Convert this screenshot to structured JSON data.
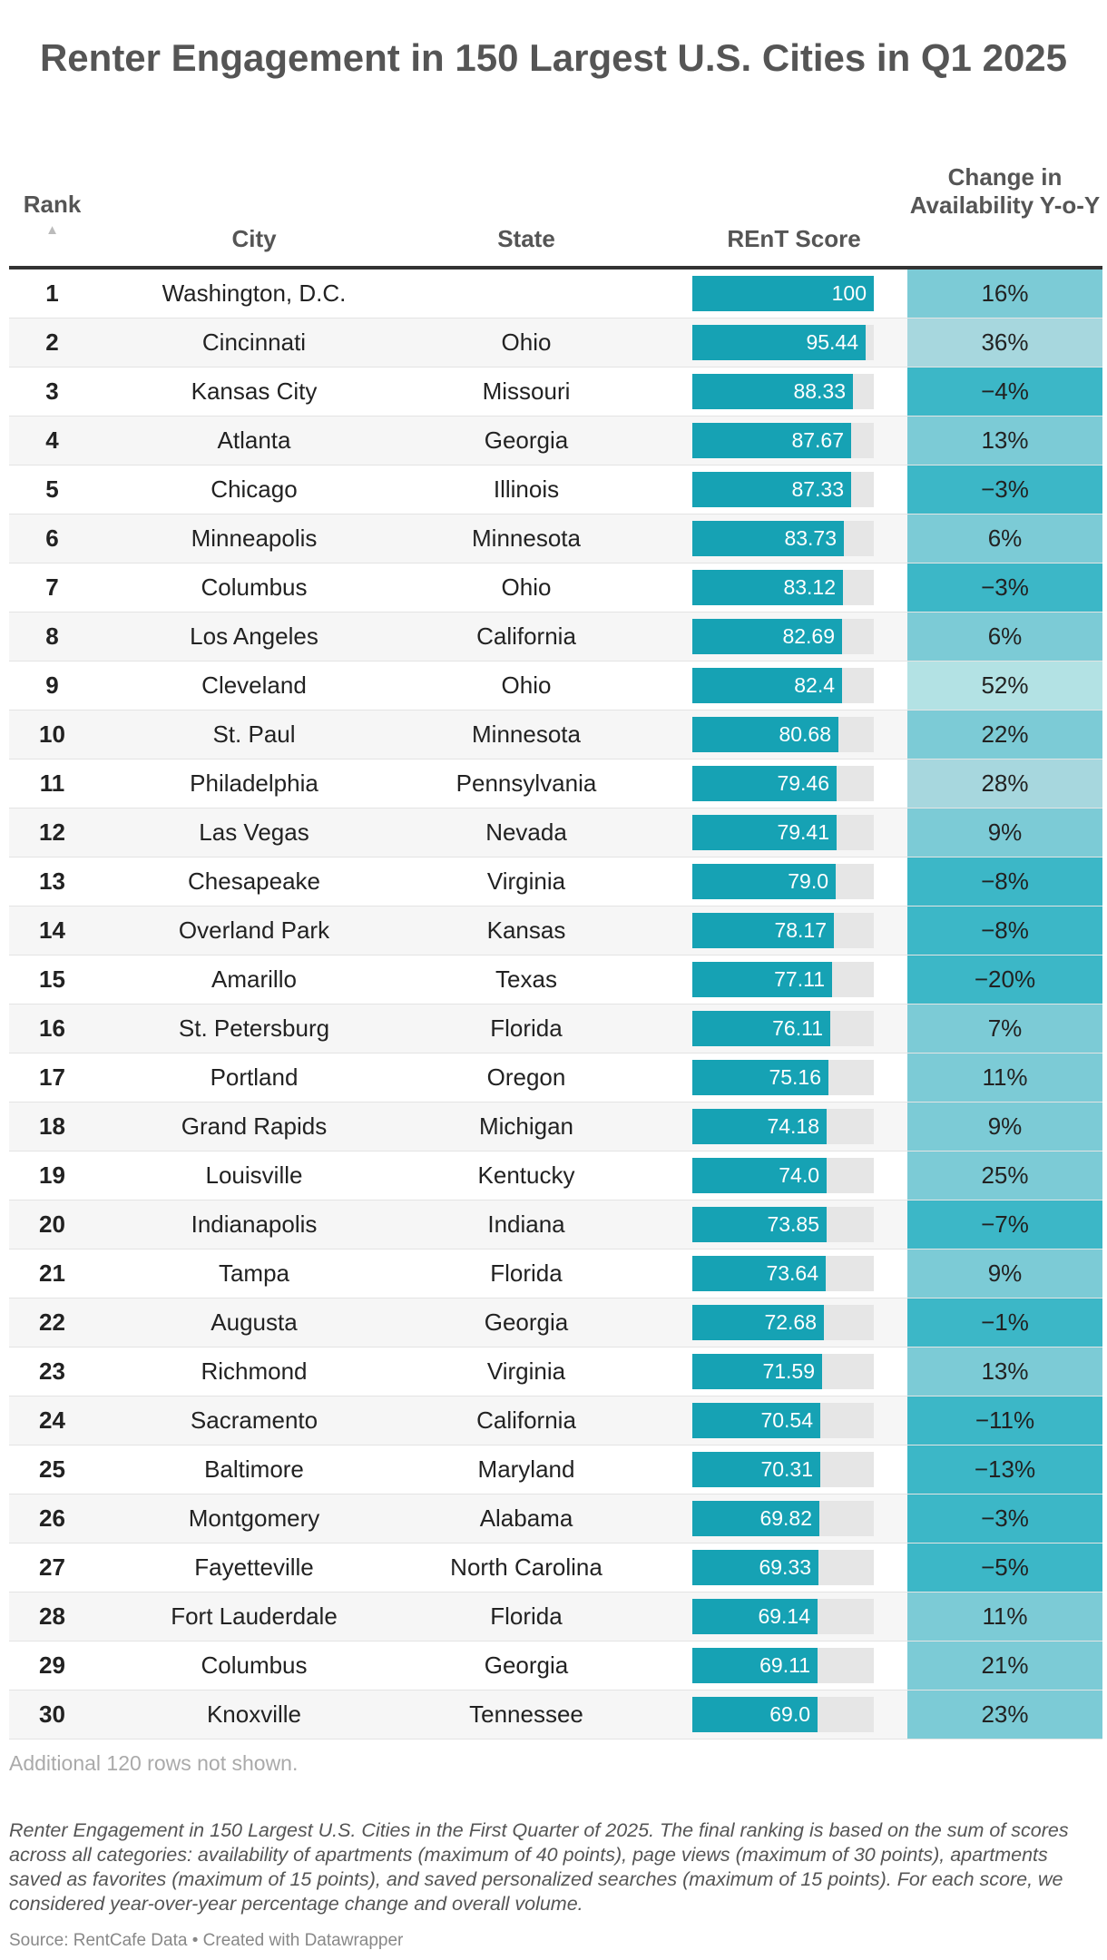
{
  "title": "Renter Engagement in 150 Largest U.S. Cities in Q1 2025",
  "columns": {
    "rank": "Rank",
    "city": "City",
    "state": "State",
    "score": "REnT Score",
    "change": "Change in Availability Y-o-Y"
  },
  "sort_icon": "sort-ascending-icon",
  "colors": {
    "bar": "#16a2b4",
    "bar_track": "#e6e6e6",
    "change_scale": [
      "#3cb7c7",
      "#7ccbd6",
      "#a7d7de",
      "#b3e2e4"
    ]
  },
  "chart_data": {
    "type": "table",
    "score_max": 100,
    "rows": [
      {
        "rank": "1",
        "city": "Washington, D.C.",
        "state": "",
        "score": 100,
        "score_label": "100",
        "change": 16,
        "change_label": "16%"
      },
      {
        "rank": "2",
        "city": "Cincinnati",
        "state": "Ohio",
        "score": 95.44,
        "score_label": "95.44",
        "change": 36,
        "change_label": "36%"
      },
      {
        "rank": "3",
        "city": "Kansas City",
        "state": "Missouri",
        "score": 88.33,
        "score_label": "88.33",
        "change": -4,
        "change_label": "−4%"
      },
      {
        "rank": "4",
        "city": "Atlanta",
        "state": "Georgia",
        "score": 87.67,
        "score_label": "87.67",
        "change": 13,
        "change_label": "13%"
      },
      {
        "rank": "5",
        "city": "Chicago",
        "state": "Illinois",
        "score": 87.33,
        "score_label": "87.33",
        "change": -3,
        "change_label": "−3%"
      },
      {
        "rank": "6",
        "city": "Minneapolis",
        "state": "Minnesota",
        "score": 83.73,
        "score_label": "83.73",
        "change": 6,
        "change_label": "6%"
      },
      {
        "rank": "7",
        "city": "Columbus",
        "state": "Ohio",
        "score": 83.12,
        "score_label": "83.12",
        "change": -3,
        "change_label": "−3%"
      },
      {
        "rank": "8",
        "city": "Los Angeles",
        "state": "California",
        "score": 82.69,
        "score_label": "82.69",
        "change": 6,
        "change_label": "6%"
      },
      {
        "rank": "9",
        "city": "Cleveland",
        "state": "Ohio",
        "score": 82.4,
        "score_label": "82.4",
        "change": 52,
        "change_label": "52%"
      },
      {
        "rank": "10",
        "city": "St. Paul",
        "state": "Minnesota",
        "score": 80.68,
        "score_label": "80.68",
        "change": 22,
        "change_label": "22%"
      },
      {
        "rank": "11",
        "city": "Philadelphia",
        "state": "Pennsylvania",
        "score": 79.46,
        "score_label": "79.46",
        "change": 28,
        "change_label": "28%"
      },
      {
        "rank": "12",
        "city": "Las Vegas",
        "state": "Nevada",
        "score": 79.41,
        "score_label": "79.41",
        "change": 9,
        "change_label": "9%"
      },
      {
        "rank": "13",
        "city": "Chesapeake",
        "state": "Virginia",
        "score": 79.0,
        "score_label": "79.0",
        "change": -8,
        "change_label": "−8%"
      },
      {
        "rank": "14",
        "city": "Overland Park",
        "state": "Kansas",
        "score": 78.17,
        "score_label": "78.17",
        "change": -8,
        "change_label": "−8%"
      },
      {
        "rank": "15",
        "city": "Amarillo",
        "state": "Texas",
        "score": 77.11,
        "score_label": "77.11",
        "change": -20,
        "change_label": "−20%"
      },
      {
        "rank": "16",
        "city": "St. Petersburg",
        "state": "Florida",
        "score": 76.11,
        "score_label": "76.11",
        "change": 7,
        "change_label": "7%"
      },
      {
        "rank": "17",
        "city": "Portland",
        "state": "Oregon",
        "score": 75.16,
        "score_label": "75.16",
        "change": 11,
        "change_label": "11%"
      },
      {
        "rank": "18",
        "city": "Grand Rapids",
        "state": "Michigan",
        "score": 74.18,
        "score_label": "74.18",
        "change": 9,
        "change_label": "9%"
      },
      {
        "rank": "19",
        "city": "Louisville",
        "state": "Kentucky",
        "score": 74.0,
        "score_label": "74.0",
        "change": 25,
        "change_label": "25%"
      },
      {
        "rank": "20",
        "city": "Indianapolis",
        "state": "Indiana",
        "score": 73.85,
        "score_label": "73.85",
        "change": -7,
        "change_label": "−7%"
      },
      {
        "rank": "21",
        "city": "Tampa",
        "state": "Florida",
        "score": 73.64,
        "score_label": "73.64",
        "change": 9,
        "change_label": "9%"
      },
      {
        "rank": "22",
        "city": "Augusta",
        "state": "Georgia",
        "score": 72.68,
        "score_label": "72.68",
        "change": -1,
        "change_label": "−1%"
      },
      {
        "rank": "23",
        "city": "Richmond",
        "state": "Virginia",
        "score": 71.59,
        "score_label": "71.59",
        "change": 13,
        "change_label": "13%"
      },
      {
        "rank": "24",
        "city": "Sacramento",
        "state": "California",
        "score": 70.54,
        "score_label": "70.54",
        "change": -11,
        "change_label": "−11%"
      },
      {
        "rank": "25",
        "city": "Baltimore",
        "state": "Maryland",
        "score": 70.31,
        "score_label": "70.31",
        "change": -13,
        "change_label": "−13%"
      },
      {
        "rank": "26",
        "city": "Montgomery",
        "state": "Alabama",
        "score": 69.82,
        "score_label": "69.82",
        "change": -3,
        "change_label": "−3%"
      },
      {
        "rank": "27",
        "city": "Fayetteville",
        "state": "North Carolina",
        "score": 69.33,
        "score_label": "69.33",
        "change": -5,
        "change_label": "−5%"
      },
      {
        "rank": "28",
        "city": "Fort Lauderdale",
        "state": "Florida",
        "score": 69.14,
        "score_label": "69.14",
        "change": 11,
        "change_label": "11%"
      },
      {
        "rank": "29",
        "city": "Columbus",
        "state": "Georgia",
        "score": 69.11,
        "score_label": "69.11",
        "change": 21,
        "change_label": "21%"
      },
      {
        "rank": "30",
        "city": "Knoxville",
        "state": "Tennessee",
        "score": 69.0,
        "score_label": "69.0",
        "change": 23,
        "change_label": "23%"
      }
    ]
  },
  "footer": {
    "hidden_rows_note": "Additional 120 rows not shown.",
    "description": "Renter Engagement in 150 Largest U.S. Cities in the First Quarter of 2025. The final ranking is based on the sum of scores across all categories: availability of apartments (maximum of 40 points), page views (maximum of 30 points), apartments saved as favorites (maximum of 15 points), and saved personalized searches (maximum of 15 points). For each score, we considered year-over-year percentage change and overall volume.",
    "source": "Source: RentCafe Data • Created with Datawrapper"
  }
}
